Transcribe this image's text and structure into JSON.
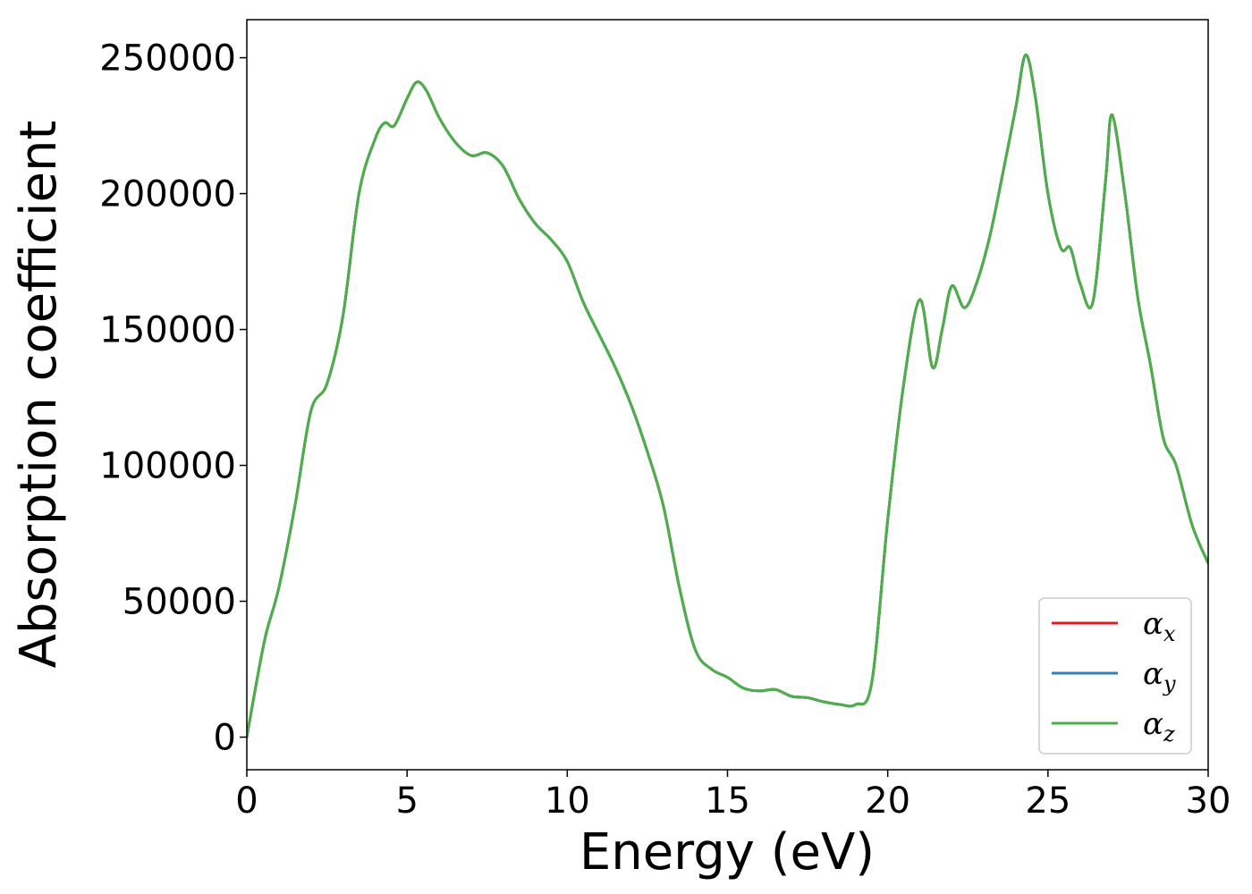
{
  "chart_data": {
    "type": "line",
    "title": "",
    "xlabel": "Energy (eV)",
    "ylabel": "Absorption coefficient",
    "xlim": [
      0,
      30
    ],
    "ylim": [
      -12000,
      264000
    ],
    "xticks": [
      0,
      5,
      10,
      15,
      20,
      25,
      30
    ],
    "yticks": [
      0,
      50000,
      100000,
      150000,
      200000,
      250000
    ],
    "grid": false,
    "legend_position": "bottom-right",
    "x": [
      0,
      0.3,
      0.6,
      1,
      1.5,
      2,
      2.5,
      3,
      3.5,
      4,
      4.3,
      4.6,
      5,
      5.3,
      5.6,
      6,
      6.5,
      7,
      7.5,
      8,
      8.5,
      9,
      9.5,
      10,
      10.5,
      11,
      11.5,
      12,
      12.5,
      13,
      13.5,
      14,
      14.5,
      15,
      15.5,
      16,
      16.5,
      17,
      17.5,
      18,
      18.5,
      19,
      19.5,
      20,
      20.5,
      21,
      21.4,
      21.7,
      22,
      22.4,
      22.8,
      23.2,
      23.6,
      24,
      24.3,
      24.6,
      25,
      25.4,
      25.7,
      26,
      26.4,
      26.8,
      27,
      27.4,
      27.8,
      28.2,
      28.6,
      29,
      29.5,
      30
    ],
    "series": [
      {
        "name": "αx",
        "name_base": "α",
        "name_sub": "x",
        "color": "#e41a1c",
        "values": [
          0,
          20000,
          38000,
          55000,
          85000,
          120000,
          130000,
          155000,
          200000,
          220000,
          226000,
          225000,
          235000,
          241000,
          238000,
          228000,
          219000,
          214000,
          215000,
          210000,
          198000,
          189000,
          183000,
          175000,
          160000,
          148000,
          136000,
          122000,
          105000,
          85000,
          55000,
          32000,
          25000,
          22000,
          18000,
          17000,
          17500,
          15000,
          14500,
          13000,
          12000,
          12000,
          20000,
          80000,
          130000,
          161000,
          136000,
          150000,
          166000,
          158000,
          168000,
          185000,
          208000,
          232000,
          251000,
          236000,
          200000,
          180000,
          180000,
          167000,
          160000,
          205000,
          229000,
          200000,
          162000,
          137000,
          110000,
          100000,
          78000,
          64000
        ]
      },
      {
        "name": "αy",
        "name_base": "α",
        "name_sub": "y",
        "color": "#377eb8",
        "values": [
          0,
          20000,
          38000,
          55000,
          85000,
          120000,
          130000,
          155000,
          200000,
          220000,
          226000,
          225000,
          235000,
          241000,
          238000,
          228000,
          219000,
          214000,
          215000,
          210000,
          198000,
          189000,
          183000,
          175000,
          160000,
          148000,
          136000,
          122000,
          105000,
          85000,
          55000,
          32000,
          25000,
          22000,
          18000,
          17000,
          17500,
          15000,
          14500,
          13000,
          12000,
          12000,
          20000,
          80000,
          130000,
          161000,
          136000,
          150000,
          166000,
          158000,
          168000,
          185000,
          208000,
          232000,
          251000,
          236000,
          200000,
          180000,
          180000,
          167000,
          160000,
          205000,
          229000,
          200000,
          162000,
          137000,
          110000,
          100000,
          78000,
          64000
        ]
      },
      {
        "name": "αz",
        "name_base": "α",
        "name_sub": "z",
        "color": "#4daf4a",
        "values": [
          0,
          20000,
          38000,
          55000,
          85000,
          120000,
          130000,
          155000,
          200000,
          220000,
          226000,
          225000,
          235000,
          241000,
          238000,
          228000,
          219000,
          214000,
          215000,
          210000,
          198000,
          189000,
          183000,
          175000,
          160000,
          148000,
          136000,
          122000,
          105000,
          85000,
          55000,
          32000,
          25000,
          22000,
          18000,
          17000,
          17500,
          15000,
          14500,
          13000,
          12000,
          12000,
          20000,
          80000,
          130000,
          161000,
          136000,
          150000,
          166000,
          158000,
          168000,
          185000,
          208000,
          232000,
          251000,
          236000,
          200000,
          180000,
          180000,
          167000,
          160000,
          205000,
          229000,
          200000,
          162000,
          137000,
          110000,
          100000,
          78000,
          64000
        ]
      }
    ]
  }
}
